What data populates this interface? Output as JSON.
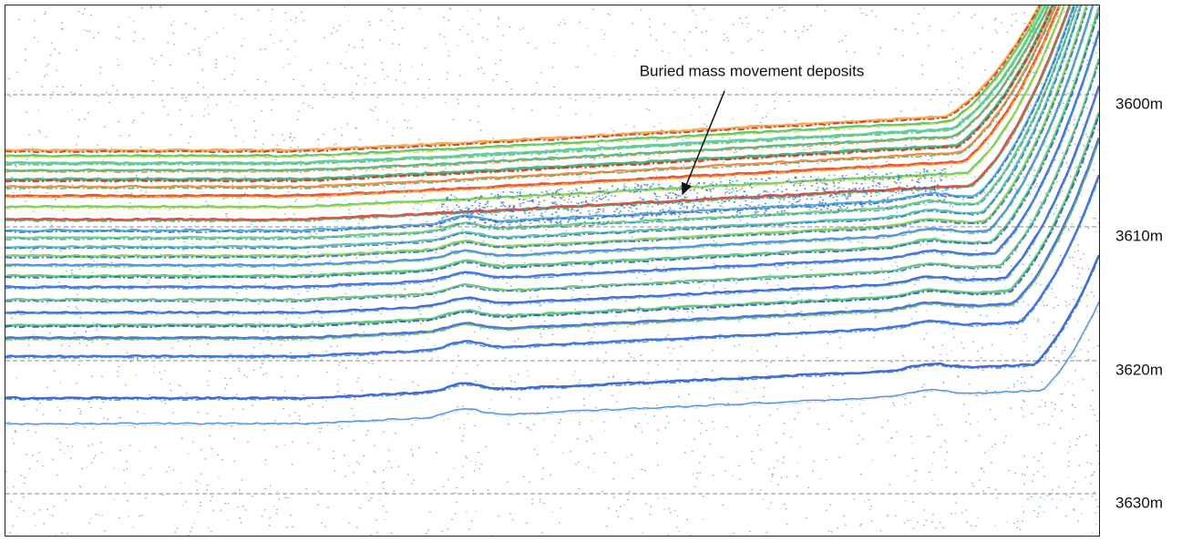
{
  "annotation": "Buried mass movement deposits",
  "depth_labels": [
    "3600m",
    "3610m",
    "3620m",
    "3630m"
  ]
}
